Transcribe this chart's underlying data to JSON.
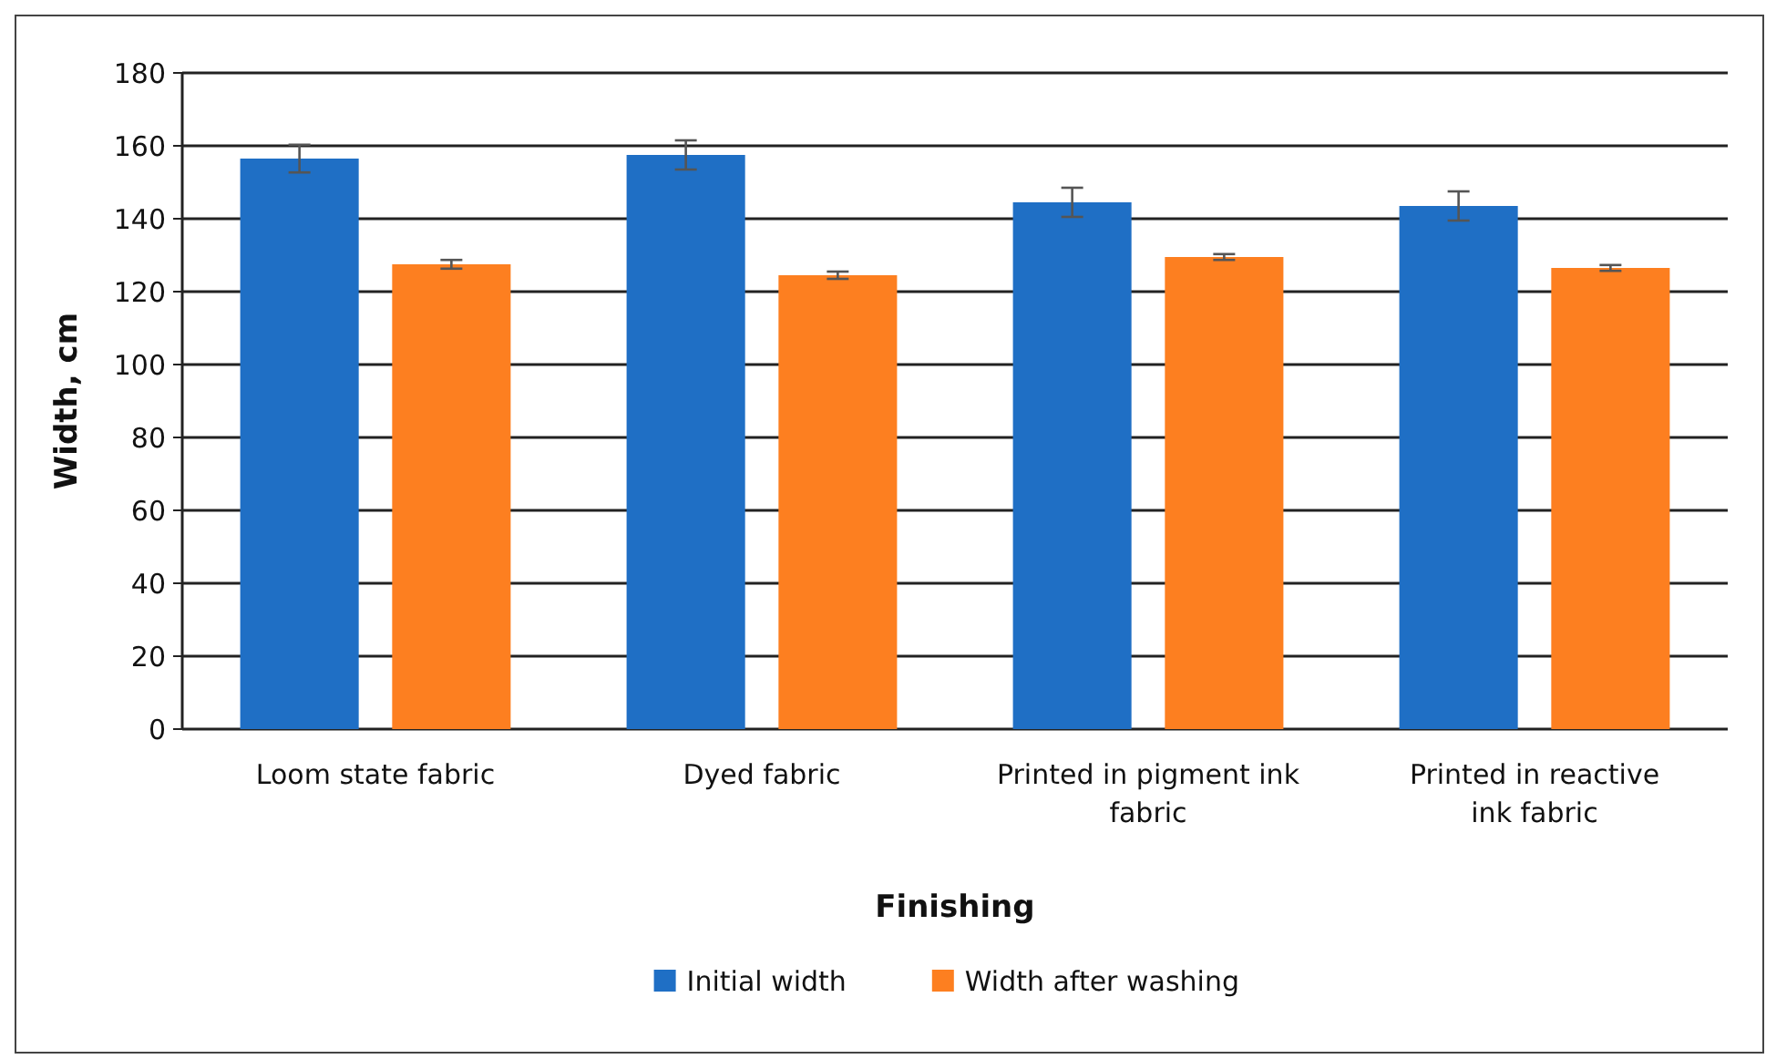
{
  "chart_data": {
    "type": "bar",
    "xlabel": "Finishing",
    "ylabel": "Width, cm",
    "categories": [
      "Loom state fabric",
      "Dyed fabric",
      "Printed in pigment ink fabric",
      "Printed in reactive ink fabric"
    ],
    "series": [
      {
        "name": "Initial width",
        "color": "#1f6fc5",
        "values": [
          156.5,
          157.5,
          144.5,
          143.5
        ],
        "errors": [
          3.8,
          4,
          4,
          4
        ]
      },
      {
        "name": "Width after washing",
        "color": "#fd7f20",
        "values": [
          127.5,
          124.5,
          129.5,
          126.5
        ],
        "errors": [
          1.2,
          1,
          0.8,
          0.8
        ]
      }
    ],
    "ylim": [
      0,
      180
    ],
    "yticks": [
      0,
      20,
      40,
      60,
      80,
      100,
      120,
      140,
      160,
      180
    ],
    "grid": "y",
    "legend": "bottom"
  }
}
